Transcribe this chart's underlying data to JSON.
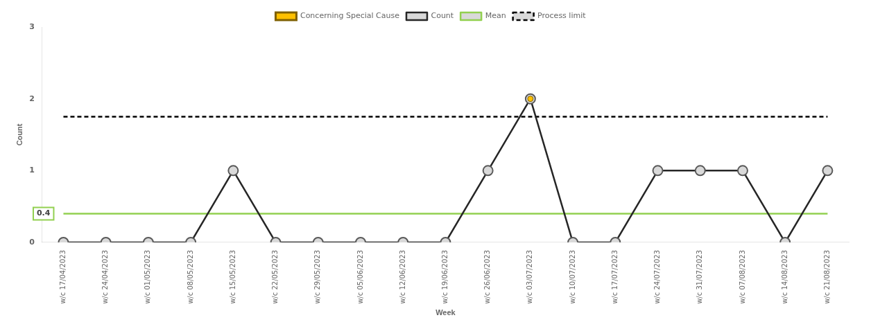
{
  "chart_data": {
    "type": "line",
    "xlabel": "Week",
    "ylabel": "Count",
    "categories": [
      "w/c 17/04/2023",
      "w/c 24/04/2023",
      "w/c 01/05/2023",
      "w/c 08/05/2023",
      "w/c 15/05/2023",
      "w/c 22/05/2023",
      "w/c 29/05/2023",
      "w/c 05/06/2023",
      "w/c 12/06/2023",
      "w/c 19/06/2023",
      "w/c 26/06/2023",
      "w/c 03/07/2023",
      "w/c 10/07/2023",
      "w/c 17/07/2023",
      "w/c 24/07/2023",
      "w/c 31/07/2023",
      "w/c 07/08/2023",
      "w/c 14/08/2023",
      "w/c 21/08/2023"
    ],
    "series": [
      {
        "name": "Count",
        "color": "#262626",
        "values": [
          0,
          0,
          0,
          0,
          1,
          0,
          0,
          0,
          0,
          0,
          1,
          2,
          0,
          0,
          1,
          1,
          1,
          0,
          1
        ]
      },
      {
        "name": "Mean",
        "color": "#92d050",
        "marker": "none",
        "values": [
          0.4,
          0.4,
          0.4,
          0.4,
          0.4,
          0.4,
          0.4,
          0.4,
          0.4,
          0.4,
          0.4,
          0.4,
          0.4,
          0.4,
          0.4,
          0.4,
          0.4,
          0.4,
          0.4
        ]
      },
      {
        "name": "Process limit",
        "color": "#000000",
        "marker": "none",
        "line_style": "dashed",
        "values": [
          1.75,
          1.75,
          1.75,
          1.75,
          1.75,
          1.75,
          1.75,
          1.75,
          1.75,
          1.75,
          1.75,
          1.75,
          1.75,
          1.75,
          1.75,
          1.75,
          1.75,
          1.75,
          1.75
        ]
      },
      {
        "name": "Concerning Special Cause",
        "type": "scatter",
        "color": "#ffc000",
        "x": [
          "w/c 03/07/2023"
        ],
        "values": [
          2
        ]
      }
    ],
    "annotations": [
      "0.4"
    ],
    "ylim": [
      0,
      3
    ],
    "yticks": [
      0,
      1,
      2,
      3
    ],
    "grid": false,
    "legend": "top",
    "marker": "circle",
    "line_style": "solid"
  }
}
